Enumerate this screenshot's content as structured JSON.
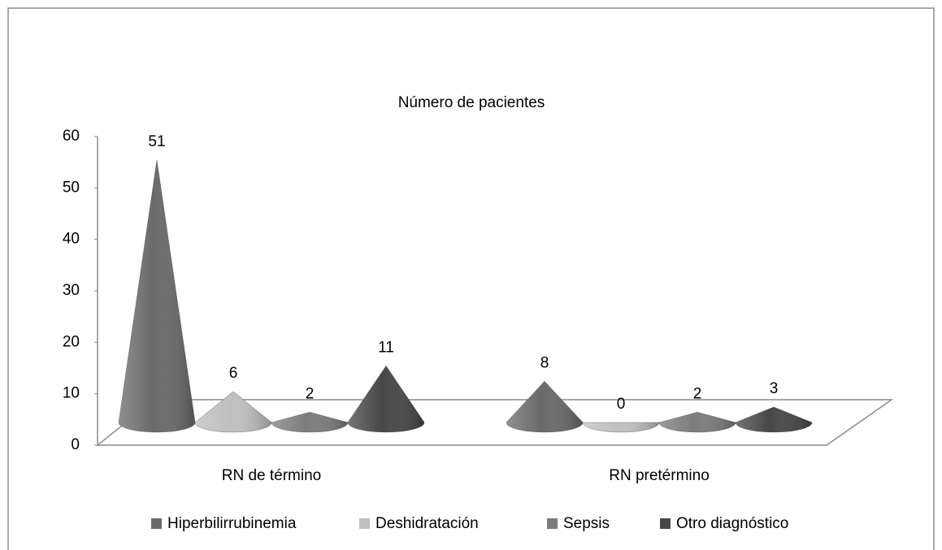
{
  "chart_data": {
    "type": "cone",
    "title": "Número de pacientes",
    "categories": [
      "RN de término",
      "RN pretérmino"
    ],
    "series": [
      {
        "name": "Hiperbilirrubinemia",
        "color": "#6a6a6a",
        "values": [
          51,
          8
        ]
      },
      {
        "name": "Deshidratación",
        "color": "#bfbfbf",
        "values": [
          6,
          0
        ]
      },
      {
        "name": "Sepsis",
        "color": "#7c7c7c",
        "values": [
          2,
          2
        ]
      },
      {
        "name": "Otro diagnóstico",
        "color": "#474747",
        "values": [
          11,
          3
        ]
      }
    ],
    "ylim": [
      0,
      60
    ],
    "yticks": [
      0,
      10,
      20,
      30,
      40,
      50,
      60
    ],
    "legend": "bottom"
  }
}
